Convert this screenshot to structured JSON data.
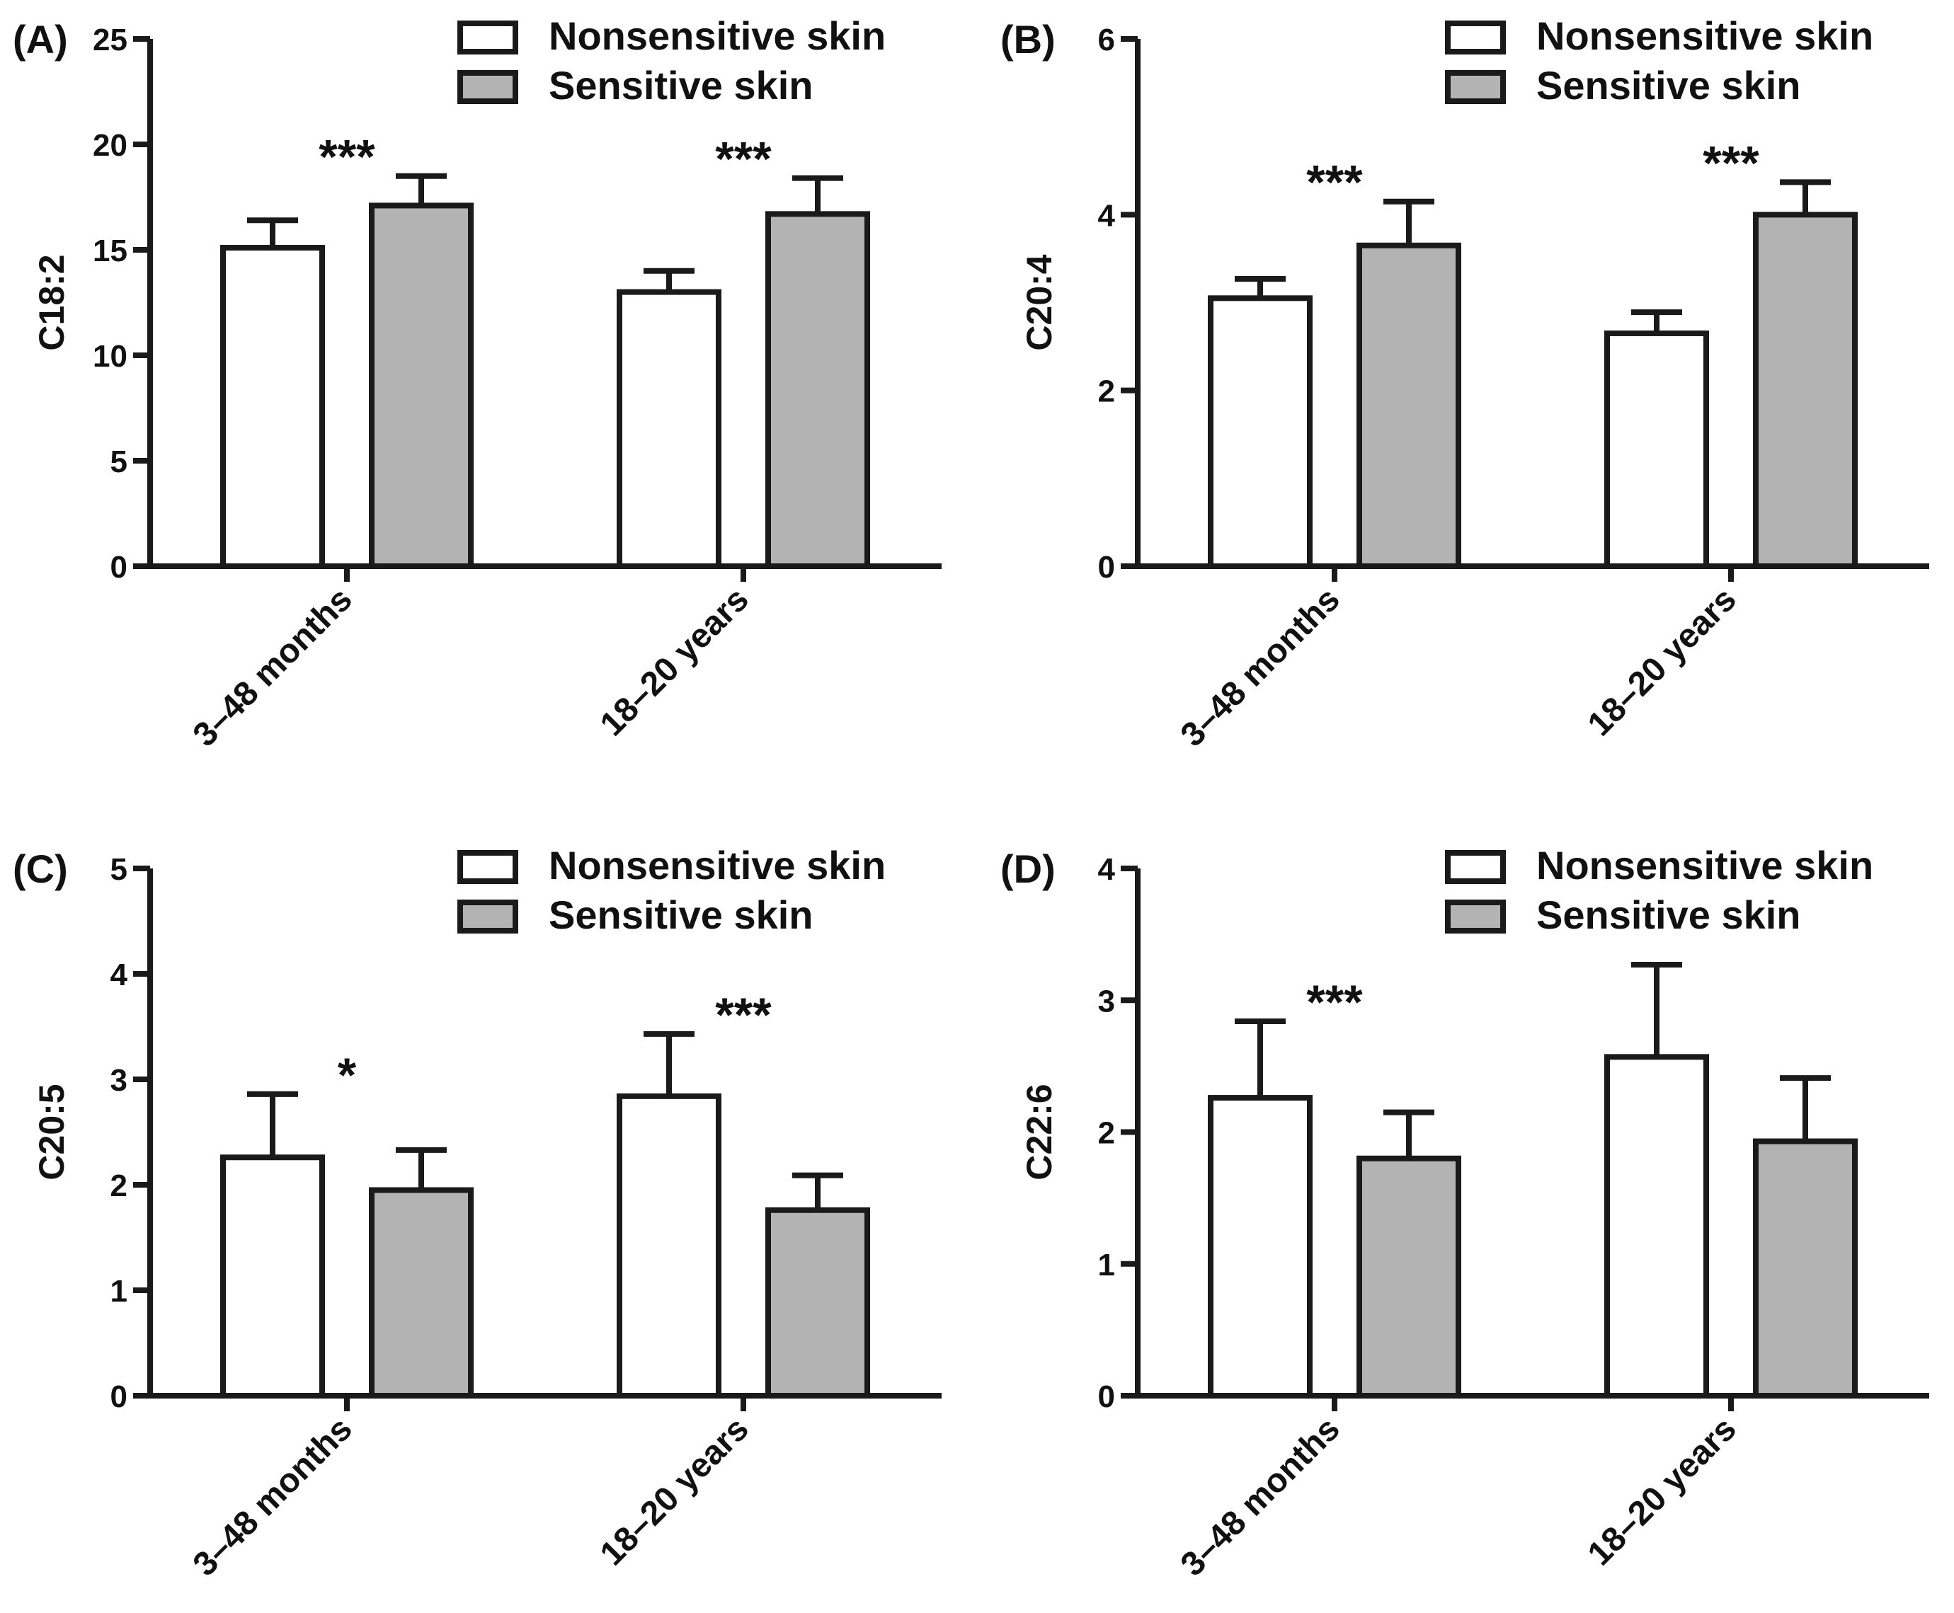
{
  "figure": {
    "legend": [
      "Nonsensitive skin",
      "Sensitive skin"
    ],
    "colors": {
      "nonsensitive": "#ffffff",
      "sensitive": "#b3b3b3",
      "line": "#1a1a1a"
    }
  },
  "chart_data": [
    {
      "panel": "(A)",
      "type": "bar",
      "ylabel": "C18:2",
      "ylim": [
        0,
        25
      ],
      "yticks": [
        "0",
        "5",
        "10",
        "15",
        "20",
        "25"
      ],
      "categories": [
        "3–48 months",
        "18–20 years"
      ],
      "series": [
        {
          "name": "Nonsensitive skin",
          "values": [
            15.1,
            13.0
          ],
          "errors": [
            1.3,
            1.0
          ]
        },
        {
          "name": "Sensitive skin",
          "values": [
            17.1,
            16.7
          ],
          "errors": [
            1.4,
            1.7
          ]
        }
      ],
      "significance": [
        "***",
        "***"
      ]
    },
    {
      "panel": "(B)",
      "type": "bar",
      "ylabel": "C20:4",
      "ylim": [
        0,
        6
      ],
      "yticks": [
        "0",
        "2",
        "4",
        "6"
      ],
      "categories": [
        "3–48 months",
        "18–20 years"
      ],
      "series": [
        {
          "name": "Nonsensitive skin",
          "values": [
            3.05,
            2.65
          ],
          "errors": [
            0.22,
            0.24
          ]
        },
        {
          "name": "Sensitive skin",
          "values": [
            3.65,
            4.0
          ],
          "errors": [
            0.5,
            0.37
          ]
        }
      ],
      "significance": [
        "***",
        "***"
      ]
    },
    {
      "panel": "(C)",
      "type": "bar",
      "ylabel": "C20:5",
      "ylim": [
        0,
        5
      ],
      "yticks": [
        "0",
        "1",
        "2",
        "3",
        "4",
        "5"
      ],
      "categories": [
        "3–48 months",
        "18–20 years"
      ],
      "series": [
        {
          "name": "Nonsensitive skin",
          "values": [
            2.26,
            2.84
          ],
          "errors": [
            0.6,
            0.59
          ]
        },
        {
          "name": "Sensitive skin",
          "values": [
            1.95,
            1.76
          ],
          "errors": [
            0.38,
            0.33
          ]
        }
      ],
      "significance": [
        "*",
        "***"
      ]
    },
    {
      "panel": "(D)",
      "type": "bar",
      "ylabel": "C22:6",
      "ylim": [
        0,
        4
      ],
      "yticks": [
        "0",
        "1",
        "2",
        "3",
        "4"
      ],
      "categories": [
        "3–48 months",
        "18–20 years"
      ],
      "series": [
        {
          "name": "Nonsensitive skin",
          "values": [
            2.26,
            2.57
          ],
          "errors": [
            0.58,
            0.7
          ]
        },
        {
          "name": "Sensitive skin",
          "values": [
            1.8,
            1.93
          ],
          "errors": [
            0.35,
            0.48
          ]
        }
      ],
      "significance": [
        "***",
        ""
      ]
    }
  ]
}
